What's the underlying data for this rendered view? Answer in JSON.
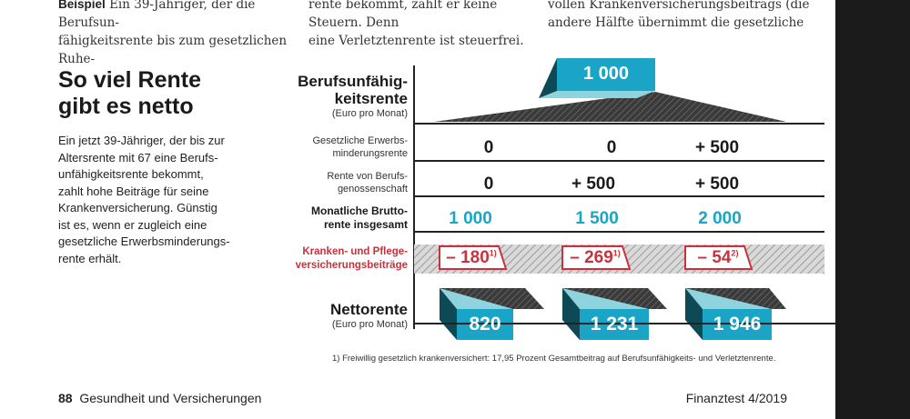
{
  "top_text": {
    "col1_line1_bold": "Beispiel",
    "col1_line1": " Ein 39-Jähriger, der die Berufsun-",
    "col1_line2": "fähigkeitsrente bis zum gesetzlichen Ruhe-",
    "col2_line1": "rente bekommt, zahlt er keine Steuern. Denn",
    "col2_line2": "eine Verletztenrente ist steuerfrei.",
    "col3_line1": "vollen Krankenversicherungsbeitrags (die",
    "col3_line2": "andere Hälfte übernimmt die gesetzliche"
  },
  "heading": {
    "line1": "So viel Rente",
    "line2": "gibt es netto"
  },
  "lead": [
    "Ein jetzt 39-Jähriger, der bis zur",
    "Altersrente mit 67 eine Berufs-",
    "unfähigkeitsrente bekommt,",
    "zahlt hohe Beiträge für seine",
    "Krankenversicherung. Günstig",
    "ist es, wenn er zugleich eine",
    "gesetzliche Erwerbsminderungs-",
    "rente erhält."
  ],
  "graphic": {
    "bu_rente": {
      "label_line1": "Berufsunfähig-",
      "label_line2": "keitsrente",
      "unit": "(Euro pro Monat)",
      "value": "1 000"
    },
    "rows": [
      {
        "label_line1": "Gesetzliche Erwerbs-",
        "label_line2": "minderungsrente",
        "values": [
          "0",
          "0",
          "+ 500"
        ]
      },
      {
        "label_line1": "Rente von Berufs-",
        "label_line2": "genossenschaft",
        "values": [
          "0",
          "+ 500",
          "+ 500"
        ]
      }
    ],
    "gross": {
      "label_line1": "Monatliche Brutto-",
      "label_line2": "rente insgesamt",
      "values": [
        "1 000",
        "1 500",
        "2 000"
      ]
    },
    "insurance": {
      "label_line1": "Kranken- und Pflege-",
      "label_line2": "versicherungsbeiträge",
      "values": [
        {
          "v": "– 180",
          "sup": "1)"
        },
        {
          "v": "– 269",
          "sup": "1)"
        },
        {
          "v": "– 54",
          "sup": "2)"
        }
      ]
    },
    "net": {
      "label": "Nettorente",
      "unit": "(Euro pro Monat)",
      "values": [
        "820",
        "1 231",
        "1 946"
      ]
    },
    "footnote": "1) Freiwillig gesetzlich krankenversichert: 17,95 Prozent Gesamtbeitrag auf Berufsunfähigkeits- und Verletztenrente."
  },
  "footer": {
    "page": "88",
    "section": "Gesundheit und Versicherungen",
    "magazine": "Finanztest 4/2019"
  },
  "colors": {
    "teal": "#1aa5c6",
    "dark_teal": "#0e4a55",
    "light_teal": "#8fd3df",
    "red": "#c8323c",
    "hatch": "#444444"
  }
}
